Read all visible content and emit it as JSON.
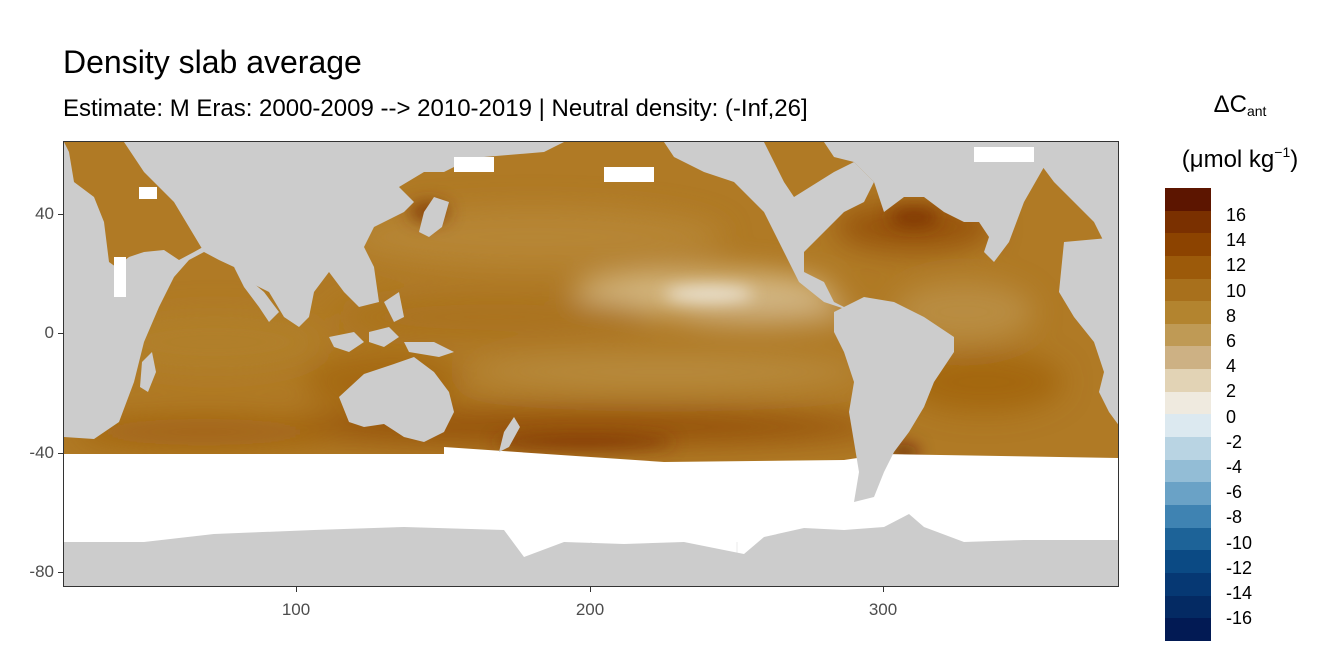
{
  "title": "Density slab average",
  "subtitle": "Estimate: M Eras: 2000-2009 --> 2010-2019 | Neutral density: (-Inf,26]",
  "legend": {
    "title_main": "ΔC",
    "title_sub": "ant",
    "unit_prefix": "(μmol kg",
    "unit_sup": "−1",
    "unit_suffix": ")",
    "labels": [
      "16",
      "14",
      "12",
      "10",
      "8",
      "6",
      "4",
      "2",
      "0",
      "-2",
      "-4",
      "-6",
      "-8",
      "-10",
      "-12",
      "-14",
      "-16"
    ],
    "colors": [
      "#5c1500",
      "#7a3000",
      "#8c4300",
      "#9c5a0a",
      "#a8701c",
      "#b3842f",
      "#bf9a55",
      "#cdb184",
      "#e2d3b5",
      "#efeadf",
      "#dce9f0",
      "#b9d4e3",
      "#93bdd6",
      "#6aa2c6",
      "#3f83b2",
      "#1d6398",
      "#0b4a84",
      "#063873",
      "#042a63",
      "#021a54"
    ],
    "ocean_color": "#b07a25",
    "land_color": "#cccccc"
  },
  "axes": {
    "x_ticks": [
      "100",
      "200",
      "300"
    ],
    "y_ticks": [
      "40",
      "0",
      "-40",
      "-80"
    ]
  },
  "map_data": {
    "type": "raster-map",
    "variable": "ΔCant",
    "x_range": [
      20,
      380
    ],
    "y_range": [
      -85,
      65
    ],
    "color_scale_range": [
      -17,
      17
    ],
    "typical_values": {
      "north_pacific": 10,
      "subtropical_north_pacific_min": 4,
      "north_atlantic": 13,
      "southern_band_40S": 14,
      "indian_ocean": 10,
      "south_atlantic": 10
    },
    "grid": false
  }
}
